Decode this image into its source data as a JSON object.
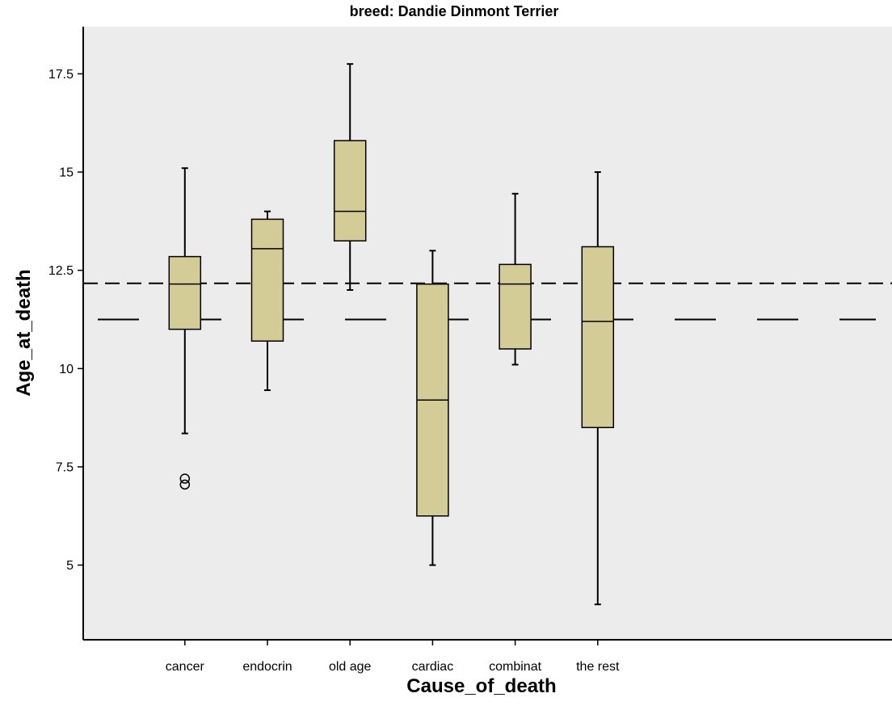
{
  "chart_data": {
    "type": "boxplot",
    "title": "breed: Dandie Dinmont Terrier",
    "xlabel": "Cause_of_death",
    "ylabel": "Age_at_death",
    "ylim": [
      3.1,
      18.7
    ],
    "yticks": [
      5,
      7.5,
      10,
      12.5,
      15,
      17.5
    ],
    "ytick_labels": [
      "5",
      "7.5",
      "10",
      "12.5",
      "15",
      "17.5"
    ],
    "categories": [
      "cancer",
      "endocrin",
      "old age",
      "cardiac",
      "combinat",
      "the rest"
    ],
    "boxes": [
      {
        "category": "cancer",
        "whisker_low": 8.35,
        "q1": 11.0,
        "median": 12.15,
        "q3": 12.85,
        "whisker_high": 15.1,
        "outliers": [
          7.2,
          7.05
        ]
      },
      {
        "category": "endocrin",
        "whisker_low": 9.45,
        "q1": 10.7,
        "median": 13.05,
        "q3": 13.8,
        "whisker_high": 14.0,
        "outliers": []
      },
      {
        "category": "old age",
        "whisker_low": 12.0,
        "q1": 13.25,
        "median": 14.0,
        "q3": 15.8,
        "whisker_high": 17.75,
        "outliers": []
      },
      {
        "category": "cardiac",
        "whisker_low": 5.0,
        "q1": 6.25,
        "median": 9.2,
        "q3": 12.15,
        "whisker_high": 13.0,
        "outliers": []
      },
      {
        "category": "combinat",
        "whisker_low": 10.1,
        "q1": 10.5,
        "median": 12.15,
        "q3": 12.65,
        "whisker_high": 14.45,
        "outliers": []
      },
      {
        "category": "the rest",
        "whisker_low": 4.0,
        "q1": 8.5,
        "median": 11.2,
        "q3": 13.1,
        "whisker_high": 15.0,
        "outliers": []
      }
    ],
    "reference_lines": [
      {
        "value": 12.17,
        "style": "dashed"
      },
      {
        "value": 11.25,
        "style": "long-dashed"
      }
    ],
    "colors": {
      "box_fill": "#d3cc96",
      "plot_background": "#ececec",
      "line": "#000000"
    },
    "grid": false,
    "legend": "none"
  }
}
